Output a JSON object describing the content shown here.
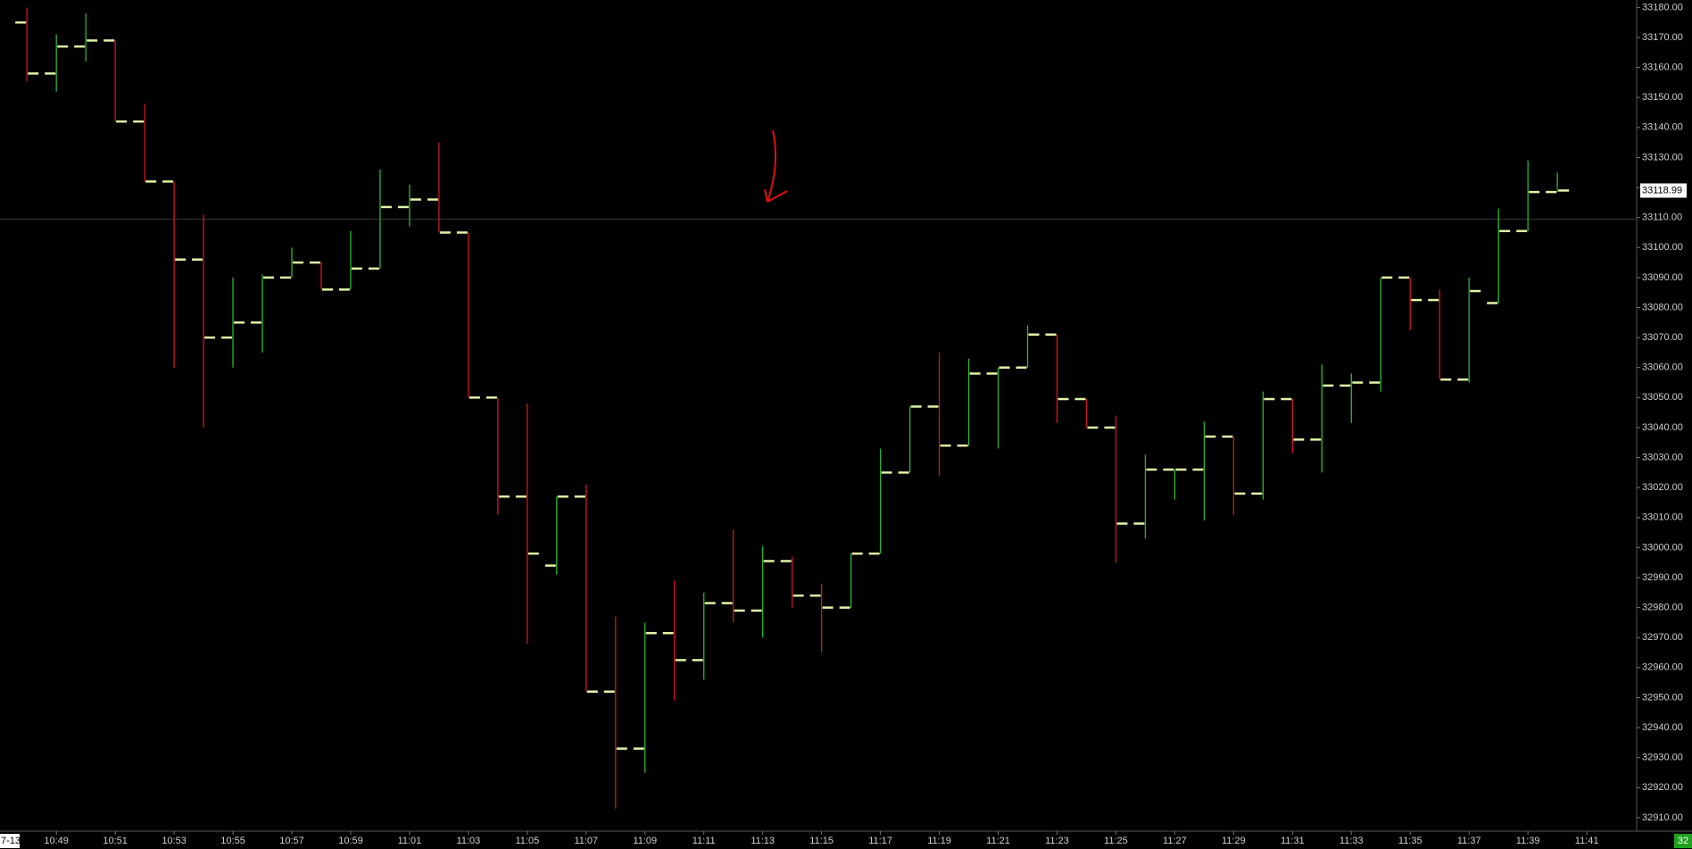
{
  "chart_data": {
    "type": "ohlc",
    "categories": [
      null,
      "10:49",
      null,
      "10:51",
      null,
      "10:53",
      null,
      "10:55",
      null,
      "10:57",
      null,
      "10:59",
      null,
      "11:01",
      null,
      "11:03",
      null,
      "11:05",
      null,
      "11:07",
      null,
      "11:09",
      null,
      "11:11",
      null,
      "11:13",
      null,
      "11:15",
      null,
      "11:17",
      null,
      "11:19",
      null,
      "11:21",
      null,
      "11:23",
      null,
      "11:25",
      null,
      "11:27",
      null,
      "11:29",
      null,
      "11:31",
      null,
      "11:33",
      null,
      "11:35",
      null,
      "11:37",
      null,
      "11:39",
      null,
      "11:41"
    ],
    "open": [
      33175,
      33158,
      33167,
      33169,
      33142,
      33122,
      33096,
      33070,
      33075,
      33090,
      33095,
      33086,
      33093,
      33113.5,
      33116,
      33105,
      33050,
      33017,
      32994,
      33017,
      32952,
      32933,
      32971.5,
      32962.5,
      32981.5,
      32979,
      32995.5,
      32984,
      32980,
      32998,
      33025,
      33047,
      33034,
      33058,
      33060,
      33071,
      33049.5,
      33040,
      33008,
      33026,
      33026,
      33037,
      33018,
      33049.5,
      33036,
      33054,
      33055,
      33090,
      33082.5,
      33056,
      33081.5,
      33105.5,
      33118.5,
      null
    ],
    "high": [
      33180,
      33171,
      33178,
      33169,
      33148,
      33122,
      33111,
      33090,
      33091,
      33100,
      33095,
      33105.5,
      33126,
      33121,
      33135,
      33105,
      33050,
      33048,
      33017,
      33021,
      32977,
      32975,
      32989,
      32985,
      33006,
      33000.5,
      32997,
      32988,
      32998,
      33033,
      33047,
      33065,
      33063,
      33060,
      33074,
      33071,
      33049.5,
      33044,
      33031,
      33026,
      33042,
      33037,
      33052,
      33049.5,
      33061,
      33058,
      33090,
      33090,
      33086,
      33090,
      33113,
      33129,
      33125,
      null
    ],
    "low": [
      33155.5,
      33152,
      33162,
      33142,
      33122,
      33060,
      33040,
      33060,
      33065,
      33090,
      33086,
      33086,
      33093,
      33107,
      33105,
      33050,
      33011,
      32968,
      32991,
      32952,
      32913,
      32925,
      32949,
      32956,
      32975,
      32970,
      32980,
      32965,
      32980,
      32998,
      33025,
      33024,
      33034,
      33033,
      33060,
      33041.5,
      33040,
      32995,
      33003,
      33016,
      33009,
      33011,
      33016,
      33031.5,
      33025,
      33041.5,
      33052,
      33072.5,
      33056,
      33055,
      33081.5,
      33105.5,
      33118.5,
      null
    ],
    "close": [
      33158,
      33167,
      33169,
      33142,
      33122,
      33096,
      33070,
      33075,
      33090,
      33095,
      33086,
      33093,
      33113.5,
      33116,
      33105,
      33050,
      33017,
      32998,
      33017,
      32952,
      32933,
      32971.5,
      32962.5,
      32981.5,
      32979,
      32995.5,
      32984,
      32980,
      32998,
      33025,
      33047,
      33034,
      33058,
      33060,
      33071,
      33049.5,
      33040,
      33008,
      33026,
      33026,
      33037,
      33018,
      33049.5,
      33036,
      33054,
      33055,
      33090,
      33082.5,
      33056,
      33085.5,
      33105.5,
      33118.5,
      33119,
      null
    ],
    "up_color": "#2db82d",
    "down_color": "#d01818",
    "tick_color": "#dff5a8",
    "ylim": [
      32905.5,
      33182.5
    ],
    "yticks": [
      {
        "value": 32910,
        "label": "32910.00"
      },
      {
        "value": 32920,
        "label": "32920.00"
      },
      {
        "value": 32930,
        "label": "32930.00"
      },
      {
        "value": 32940,
        "label": "32940.00"
      },
      {
        "value": 32950,
        "label": "32950.00"
      },
      {
        "value": 32960,
        "label": "32960.00"
      },
      {
        "value": 32970,
        "label": "32970.00"
      },
      {
        "value": 32980,
        "label": "32980.00"
      },
      {
        "value": 32990,
        "label": "32990.00"
      },
      {
        "value": 33000,
        "label": "33000.00"
      },
      {
        "value": 33010,
        "label": "33010.00"
      },
      {
        "value": 33020,
        "label": "33020.00"
      },
      {
        "value": 33030,
        "label": "33030.00"
      },
      {
        "value": 33040,
        "label": "33040.00"
      },
      {
        "value": 33050,
        "label": "33050.00"
      },
      {
        "value": 33060,
        "label": "33060.00"
      },
      {
        "value": 33070,
        "label": "33070.00"
      },
      {
        "value": 33080,
        "label": "33080.00"
      },
      {
        "value": 33090,
        "label": "33090.00"
      },
      {
        "value": 33100,
        "label": "33100.00"
      },
      {
        "value": 33110,
        "label": "33110.00"
      },
      {
        "value": 33120,
        "label": "33120.00"
      },
      {
        "value": 33130,
        "label": "33130.00"
      },
      {
        "value": 33140,
        "label": "33140.00"
      },
      {
        "value": 33150,
        "label": "33150.00"
      },
      {
        "value": 33160,
        "label": "33160.00"
      },
      {
        "value": 33170,
        "label": "33170.00"
      },
      {
        "value": 33180,
        "label": "33180.00"
      }
    ],
    "hline": 33109.5,
    "last_price": 33118.99,
    "date_label": "7-13",
    "corner_label": "32"
  }
}
